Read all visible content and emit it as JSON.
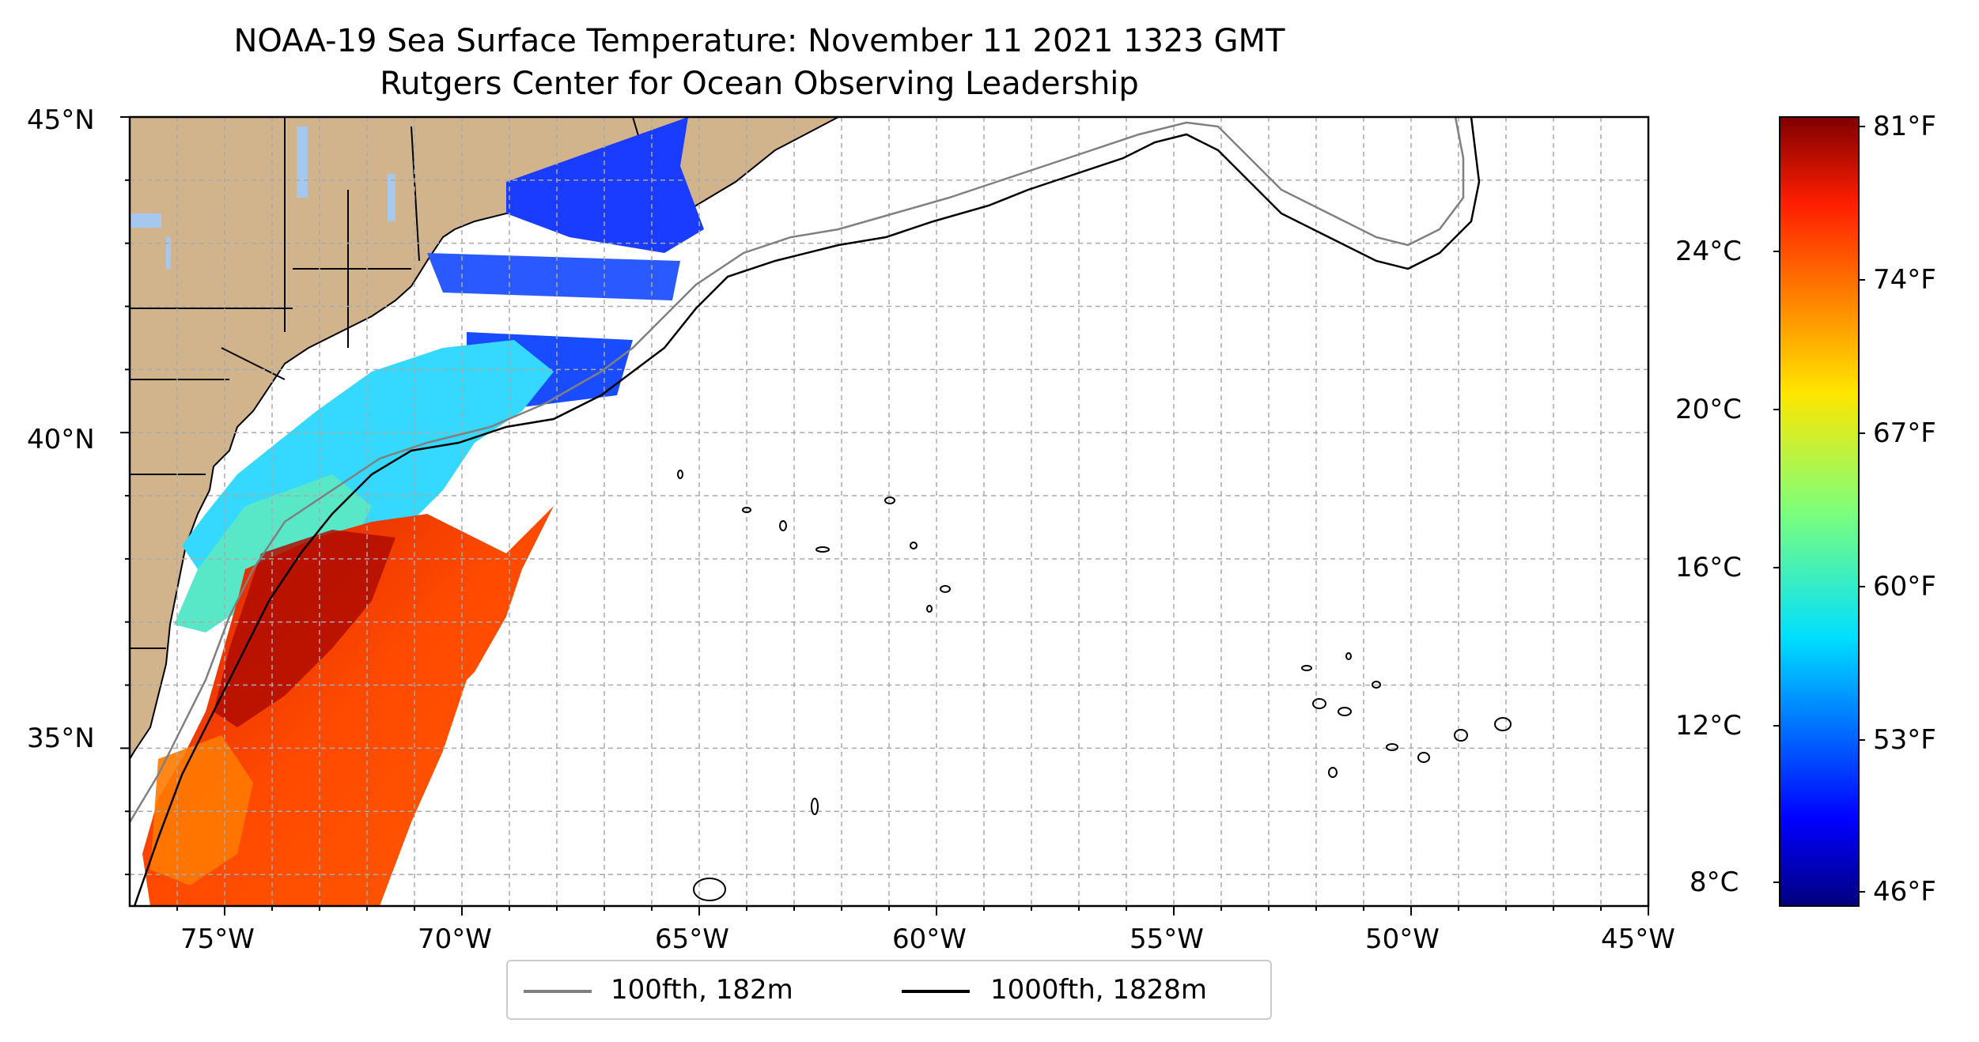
{
  "title": "NOAA-19 Sea Surface Temperature: November 11 2021 1323 GMT",
  "subtitle": "Rutgers Center for Ocean Observing Leadership",
  "map": {
    "lon_range": [
      "77°W",
      "45°W"
    ],
    "lat_range": [
      "32.5°N",
      "45°N"
    ],
    "lat_ticks": [
      "45°N",
      "40°N",
      "35°N"
    ],
    "lon_ticks": [
      "75°W",
      "70°W",
      "65°W",
      "60°W",
      "55°W",
      "50°W",
      "45°W"
    ],
    "grid": "dashed, every 1°",
    "land_color": "#d2b48c",
    "lake_color": "#a6c8ee"
  },
  "colorbar": {
    "colormap": "jet",
    "celsius_ticks": [
      "24°C",
      "20°C",
      "16°C",
      "12°C",
      "8°C"
    ],
    "fahrenheit_ticks": [
      "81°F",
      "74°F",
      "67°F",
      "60°F",
      "53°F",
      "46°F"
    ]
  },
  "legend": {
    "items": [
      {
        "label": "100fth, 182m",
        "color": "#808080"
      },
      {
        "label": "1000fth, 1828m",
        "color": "#000000"
      }
    ]
  }
}
